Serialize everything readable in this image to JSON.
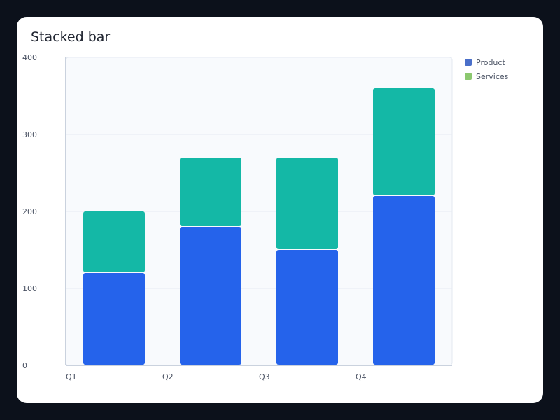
{
  "chart_data": {
    "type": "bar",
    "stacked": true,
    "title": "Stacked bar",
    "categories": [
      "Q1",
      "Q2",
      "Q3",
      "Q4"
    ],
    "series": [
      {
        "name": "Product",
        "values": [
          120,
          180,
          150,
          220
        ],
        "color": "#2563eb",
        "legend_color": "#4a6fc9"
      },
      {
        "name": "Services",
        "values": [
          80,
          90,
          120,
          140
        ],
        "color": "#14b8a6",
        "legend_color": "#8cc86f"
      }
    ],
    "y_ticks": [
      "0",
      "100",
      "200",
      "300",
      "400"
    ],
    "ylim": [
      0,
      400
    ],
    "grid": true,
    "legend_position": "right-top"
  }
}
